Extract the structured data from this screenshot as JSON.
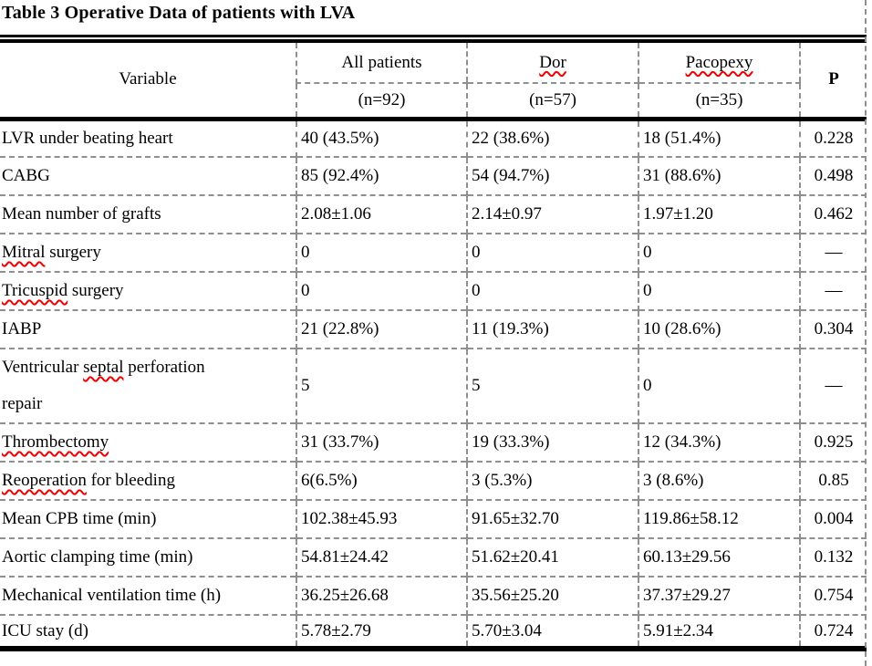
{
  "title": "Table 3 Operative Data of patients with LVA",
  "spellcheck_words": [
    "Dor",
    "Pacopexy",
    "Mitral",
    "Tricuspid",
    "septal",
    "Thrombectomy",
    "Reoperation"
  ],
  "colors": {
    "background": "#ffffff",
    "text": "#000000",
    "solid_border": "#000000",
    "dashed_border": "#8f8f8f",
    "squiggle_red": "#f00000"
  },
  "table": {
    "header": {
      "variable": "Variable",
      "groups": [
        {
          "label": "All patients",
          "n": "(n=92)"
        },
        {
          "label": "Dor",
          "n": "(n=57)"
        },
        {
          "label": "Pacopexy",
          "n": "(n=35)"
        }
      ],
      "p": "P"
    },
    "rows": [
      {
        "label": "LVR under beating heart",
        "all": "40 (43.5%)",
        "dor": "22 (38.6%)",
        "pacopexy": "18 (51.4%)",
        "p": "0.228"
      },
      {
        "label": "CABG",
        "all": "85 (92.4%)",
        "dor": "54 (94.7%)",
        "pacopexy": "31 (88.6%)",
        "p": "0.498"
      },
      {
        "label": "Mean number of grafts",
        "all": "2.08±1.06",
        "dor": "2.14±0.97",
        "pacopexy": "1.97±1.20",
        "p": "0.462"
      },
      {
        "label": "Mitral surgery",
        "all": "0",
        "dor": "0",
        "pacopexy": "0",
        "p": "—"
      },
      {
        "label": "Tricuspid surgery",
        "all": "0",
        "dor": "0",
        "pacopexy": "0",
        "p": "—"
      },
      {
        "label": "IABP",
        "all": "21 (22.8%)",
        "dor": "11 (19.3%)",
        "pacopexy": "10 (28.6%)",
        "p": "0.304"
      },
      {
        "label": "Ventricular septal perforation\nrepair",
        "all": "5",
        "dor": "5",
        "pacopexy": "0",
        "p": "—"
      },
      {
        "label": "Thrombectomy",
        "all": "31 (33.7%)",
        "dor": "19 (33.3%)",
        "pacopexy": "12 (34.3%)",
        "p": "0.925"
      },
      {
        "label": "Reoperation for bleeding",
        "all": "6(6.5%)",
        "dor": "3 (5.3%)",
        "pacopexy": "3 (8.6%)",
        "p": "0.85"
      },
      {
        "label": "Mean CPB time (min)",
        "all": "102.38±45.93",
        "dor": "91.65±32.70",
        "pacopexy": "119.86±58.12",
        "p": "0.004"
      },
      {
        "label": "Aortic clamping time  (min)",
        "all": "54.81±24.42",
        "dor": "51.62±20.41",
        "pacopexy": "60.13±29.56",
        "p": "0.132"
      },
      {
        "label": "Mechanical ventilation time (h)",
        "all": "36.25±26.68",
        "dor": "35.56±25.20",
        "pacopexy": "37.37±29.27",
        "p": "0.754"
      },
      {
        "label": "ICU stay  (d)",
        "all": "5.78±2.79",
        "dor": "5.70±3.04",
        "pacopexy": "5.91±2.34",
        "p": "0.724"
      }
    ]
  }
}
